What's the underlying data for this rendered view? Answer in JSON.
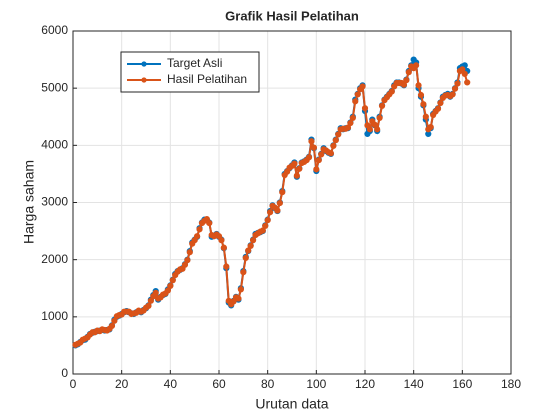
{
  "chart_data": {
    "type": "line",
    "title": "Grafik Hasil Pelatihan",
    "xlabel": "Urutan data",
    "ylabel": "Harga saham",
    "x": [
      1,
      2,
      3,
      4,
      5,
      6,
      7,
      8,
      9,
      10,
      11,
      12,
      13,
      14,
      15,
      16,
      17,
      18,
      19,
      20,
      21,
      22,
      23,
      24,
      25,
      26,
      27,
      28,
      29,
      30,
      31,
      32,
      33,
      34,
      35,
      36,
      37,
      38,
      39,
      40,
      41,
      42,
      43,
      44,
      45,
      46,
      47,
      48,
      49,
      50,
      51,
      52,
      53,
      54,
      55,
      56,
      57,
      58,
      59,
      60,
      61,
      62,
      63,
      64,
      65,
      66,
      67,
      68,
      69,
      70,
      71,
      72,
      73,
      74,
      75,
      76,
      77,
      78,
      79,
      80,
      81,
      82,
      83,
      84,
      85,
      86,
      87,
      88,
      89,
      90,
      91,
      92,
      93,
      94,
      95,
      96,
      97,
      98,
      99,
      100,
      101,
      102,
      103,
      104,
      105,
      106,
      107,
      108,
      109,
      110,
      111,
      112,
      113,
      114,
      115,
      116,
      117,
      118,
      119,
      120,
      121,
      122,
      123,
      124,
      125,
      126,
      127,
      128,
      129,
      130,
      131,
      132,
      133,
      134,
      135,
      136,
      137,
      138,
      139,
      140,
      141,
      142,
      143,
      144,
      145,
      146,
      147,
      148,
      149,
      150,
      151,
      152,
      153,
      154,
      155,
      156,
      157,
      158,
      159,
      160,
      161,
      162
    ],
    "series": [
      {
        "name": "Target Asli",
        "color": "#0072bd",
        "values": [
          500,
          520,
          560,
          590,
          600,
          650,
          700,
          720,
          740,
          750,
          760,
          770,
          760,
          770,
          780,
          850,
          950,
          1000,
          1020,
          1050,
          1080,
          1100,
          1080,
          1060,
          1050,
          1080,
          1100,
          1080,
          1120,
          1150,
          1200,
          1300,
          1380,
          1450,
          1300,
          1350,
          1380,
          1400,
          1480,
          1550,
          1650,
          1750,
          1800,
          1820,
          1850,
          1920,
          2000,
          2150,
          2300,
          2350,
          2400,
          2550,
          2650,
          2700,
          2700,
          2650,
          2400,
          2420,
          2450,
          2400,
          2350,
          2200,
          1850,
          1250,
          1200,
          1280,
          1350,
          1300,
          1500,
          1800,
          2050,
          2150,
          2250,
          2350,
          2450,
          2470,
          2480,
          2500,
          2600,
          2700,
          2850,
          2950,
          2900,
          2850,
          3000,
          3200,
          3500,
          3550,
          3600,
          3650,
          3700,
          3450,
          3600,
          3700,
          3720,
          3750,
          3800,
          4100,
          3950,
          3550,
          3750,
          3850,
          3950,
          3900,
          3870,
          3850,
          4000,
          4100,
          4200,
          4300,
          4280,
          4300,
          4300,
          4400,
          4500,
          4800,
          4900,
          5000,
          5050,
          4600,
          4200,
          4250,
          4450,
          4350,
          4250,
          4500,
          4700,
          4800,
          4850,
          4900,
          4950,
          5050,
          5100,
          5100,
          5080,
          5050,
          5150,
          5300,
          5400,
          5500,
          5450,
          5000,
          4850,
          4700,
          4450,
          4200,
          4300,
          4550,
          4600,
          4650,
          4750,
          4850,
          4880,
          4900,
          4850,
          4900,
          5000,
          5100,
          5350,
          5380,
          5400,
          5300
        ]
      },
      {
        "name": "Hasil Pelatihan",
        "color": "#d95319",
        "values": [
          510,
          530,
          550,
          600,
          620,
          640,
          690,
          730,
          730,
          760,
          750,
          780,
          770,
          760,
          790,
          840,
          930,
          1010,
          1030,
          1040,
          1090,
          1090,
          1090,
          1050,
          1060,
          1070,
          1110,
          1090,
          1110,
          1160,
          1190,
          1280,
          1360,
          1420,
          1320,
          1340,
          1390,
          1410,
          1460,
          1540,
          1640,
          1730,
          1790,
          1830,
          1840,
          1910,
          1990,
          2130,
          2280,
          2340,
          2410,
          2530,
          2640,
          2680,
          2710,
          2640,
          2430,
          2410,
          2440,
          2410,
          2340,
          2210,
          1880,
          1280,
          1220,
          1270,
          1340,
          1320,
          1480,
          1780,
          2030,
          2160,
          2240,
          2340,
          2430,
          2460,
          2490,
          2510,
          2590,
          2690,
          2830,
          2940,
          2910,
          2860,
          2990,
          3180,
          3480,
          3540,
          3610,
          3640,
          3680,
          3470,
          3590,
          3690,
          3710,
          3740,
          3790,
          4070,
          3960,
          3580,
          3740,
          3840,
          3930,
          3910,
          3880,
          3860,
          3990,
          4090,
          4190,
          4280,
          4290,
          4290,
          4310,
          4390,
          4480,
          4770,
          4890,
          4980,
          5030,
          4650,
          4350,
          4280,
          4420,
          4360,
          4280,
          4480,
          4690,
          4790,
          4840,
          4890,
          4940,
          5030,
          5090,
          5090,
          5090,
          5060,
          5140,
          5280,
          5380,
          5350,
          5400,
          5050,
          4880,
          4720,
          4500,
          4280,
          4320,
          4530,
          4590,
          4640,
          4740,
          4830,
          4870,
          4880,
          4860,
          4890,
          4990,
          5080,
          5300,
          5330,
          5250,
          5100
        ]
      }
    ],
    "xlim": [
      0,
      180
    ],
    "xticks": [
      0,
      20,
      40,
      60,
      80,
      100,
      120,
      140,
      160,
      180
    ],
    "ylim": [
      0,
      6000
    ],
    "yticks": [
      0,
      1000,
      2000,
      3000,
      4000,
      5000,
      6000
    ],
    "grid": true,
    "legend": "northwest"
  }
}
